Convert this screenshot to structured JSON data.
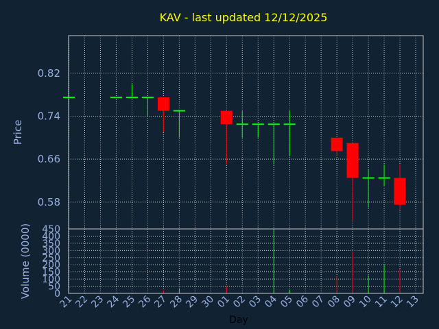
{
  "chart_data": {
    "type": "candlestick",
    "title": "KAV - last updated 12/12/2025",
    "price_panel": {
      "ylabel": "Price",
      "ylim": [
        0.53,
        0.89
      ],
      "yticks": [
        "0.82",
        "0.74",
        "0.66",
        "0.58"
      ],
      "ytick_values": [
        0.82,
        0.74,
        0.66,
        0.58
      ]
    },
    "volume_panel": {
      "ylabel": "Volume (0000)",
      "ylim": [
        0,
        450
      ],
      "yticks": [
        "450",
        "400",
        "350",
        "300",
        "250",
        "200",
        "150",
        "100",
        "50",
        "0"
      ],
      "ytick_values": [
        450,
        400,
        350,
        300,
        250,
        200,
        150,
        100,
        50,
        0
      ]
    },
    "xlabel": "Day",
    "days": [
      "21",
      "22",
      "23",
      "24",
      "25",
      "26",
      "27",
      "28",
      "29",
      "30",
      "01",
      "02",
      "03",
      "04",
      "05",
      "06",
      "07",
      "08",
      "09",
      "10",
      "11",
      "12",
      "13"
    ],
    "candles": [
      {
        "day": "21",
        "open": 0.775,
        "high": 0.775,
        "low": 0.775,
        "close": 0.775,
        "volume": 0
      },
      {
        "day": "24",
        "open": 0.775,
        "high": 0.775,
        "low": 0.775,
        "close": 0.775,
        "volume": 0
      },
      {
        "day": "25",
        "open": 0.775,
        "high": 0.8,
        "low": 0.775,
        "close": 0.775,
        "volume": 0
      },
      {
        "day": "26",
        "open": 0.775,
        "high": 0.775,
        "low": 0.74,
        "close": 0.775,
        "volume": 0
      },
      {
        "day": "27",
        "open": 0.775,
        "high": 0.775,
        "low": 0.71,
        "close": 0.75,
        "volume": 20
      },
      {
        "day": "28",
        "open": 0.75,
        "high": 0.75,
        "low": 0.7,
        "close": 0.75,
        "volume": 35
      },
      {
        "day": "01",
        "open": 0.75,
        "high": 0.75,
        "low": 0.65,
        "close": 0.725,
        "volume": 50
      },
      {
        "day": "02",
        "open": 0.725,
        "high": 0.75,
        "low": 0.7,
        "close": 0.725,
        "volume": 0
      },
      {
        "day": "03",
        "open": 0.725,
        "high": 0.725,
        "low": 0.7,
        "close": 0.725,
        "volume": 0
      },
      {
        "day": "04",
        "open": 0.725,
        "high": 0.725,
        "low": 0.65,
        "close": 0.725,
        "volume": 450
      },
      {
        "day": "05",
        "open": 0.725,
        "high": 0.75,
        "low": 0.665,
        "close": 0.725,
        "volume": 25
      },
      {
        "day": "08",
        "open": 0.7,
        "high": 0.7,
        "low": 0.665,
        "close": 0.675,
        "volume": 120
      },
      {
        "day": "09",
        "open": 0.69,
        "high": 0.69,
        "low": 0.545,
        "close": 0.625,
        "volume": 290
      },
      {
        "day": "10",
        "open": 0.625,
        "high": 0.64,
        "low": 0.57,
        "close": 0.625,
        "volume": 125
      },
      {
        "day": "11",
        "open": 0.625,
        "high": 0.65,
        "low": 0.61,
        "close": 0.625,
        "volume": 200
      },
      {
        "day": "12",
        "open": 0.625,
        "high": 0.65,
        "low": 0.565,
        "close": 0.575,
        "volume": 170
      }
    ],
    "colors": {
      "background": "#112233",
      "up": "#00ff00",
      "down": "#ff0000",
      "grid": "#c8c8c8",
      "axis_text": "#99b0dd",
      "title": "#ffff00"
    },
    "grid": true
  }
}
